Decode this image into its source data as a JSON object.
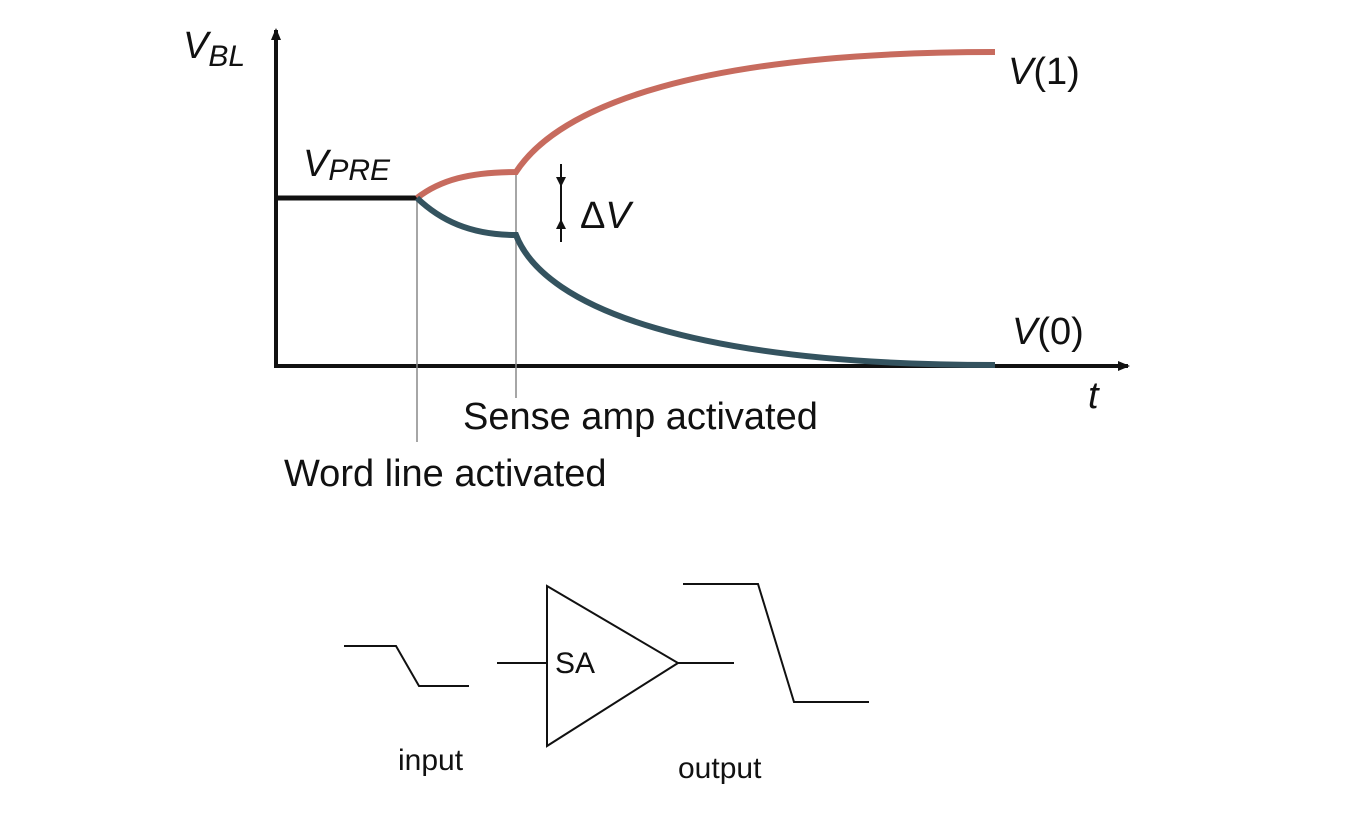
{
  "axes": {
    "y_label_main": "V",
    "y_label_sub": "BL",
    "x_label": "t"
  },
  "labels": {
    "vpre_main": "V",
    "vpre_sub": "PRE",
    "v1_main": "V",
    "v1_rest": "(1)",
    "v0_main": "V",
    "v0_rest": "(0)",
    "delta_v_symbol": "Δ",
    "delta_v_var": "V",
    "sense_amp": "Sense amp activated",
    "word_line": "Word line activated"
  },
  "amplifier": {
    "label": "SA",
    "input_label": "input",
    "output_label": "output"
  },
  "colors": {
    "high_curve": "#c76b5e",
    "low_curve": "#34535f",
    "axis": "#111111",
    "guide": "#888888"
  }
}
